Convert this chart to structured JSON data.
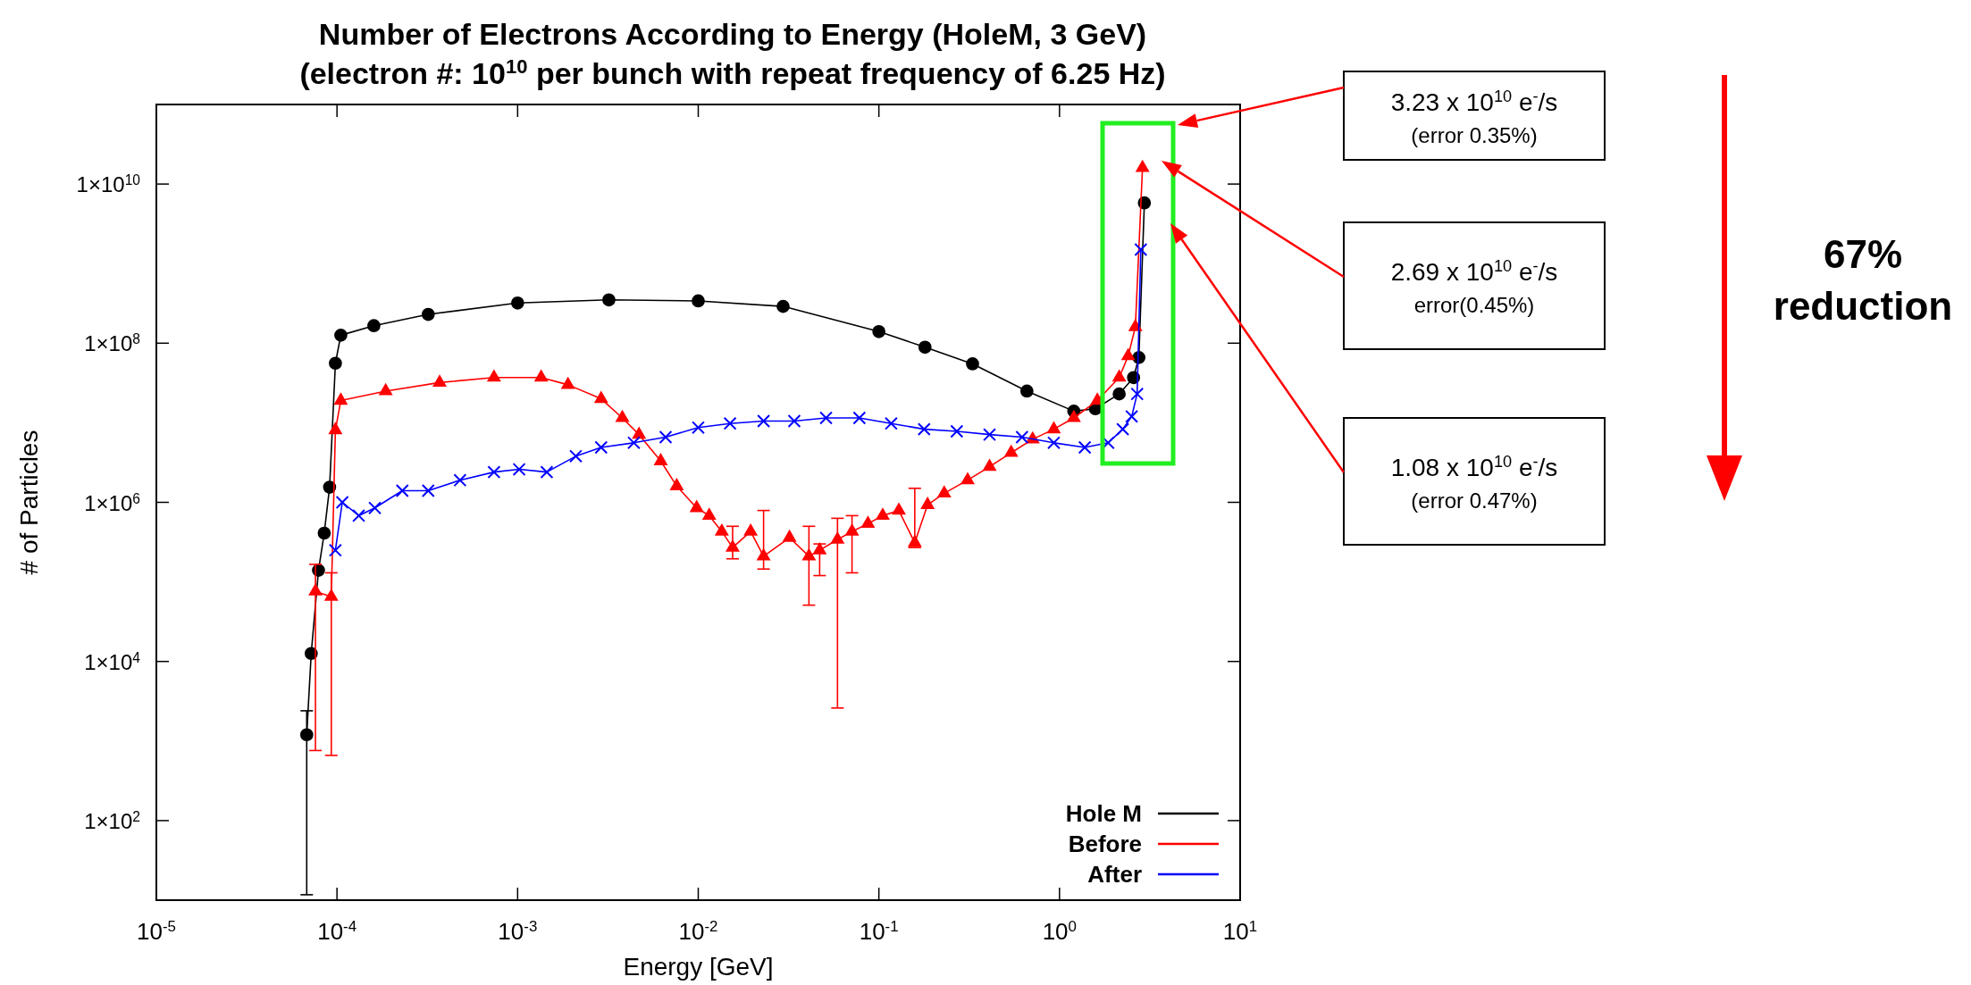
{
  "chart_data": {
    "type": "line",
    "title": "Number of Electrons According to Energy (HoleM, 3 GeV)",
    "subtitle": "(electron #: 10$^{10}$ per bunch with repeat frequency of 6.25 Hz)",
    "xlabel": "Energy [GeV]",
    "ylabel": "# of Particles",
    "log": "xy",
    "grid": false,
    "legend": "bottom right",
    "xlim": [
      1e-05,
      10
    ],
    "xticks": [
      {
        "value": 1e-05,
        "label": "10$^{-5}$"
      },
      {
        "value": 0.0001,
        "label": "10$^{-4}$"
      },
      {
        "value": 0.001,
        "label": "10$^{-3}$"
      },
      {
        "value": 0.01,
        "label": "10$^{-2}$"
      },
      {
        "value": 0.1,
        "label": "10$^{-1}$"
      },
      {
        "value": 1,
        "label": "10$^{0}$"
      },
      {
        "value": 10,
        "label": "10$^{1}$"
      }
    ],
    "ylim": [
      10,
      100000000000.0
    ],
    "yticks": [
      {
        "value": 100,
        "label": "1×10$^{2}$"
      },
      {
        "value": 10000.0,
        "label": "1×10$^{4}$"
      },
      {
        "value": 1000000.0,
        "label": "1×10$^{6}$"
      },
      {
        "value": 100000000.0,
        "label": "1×10$^{8}$"
      },
      {
        "value": 10000000000.0,
        "label": "1×10$^{10}$"
      }
    ],
    "series": [
      {
        "name": "Hole M",
        "color": "#000000",
        "marker": "circle",
        "x": [
          6.8e-05,
          7.2e-05,
          7.9e-05,
          8.5e-05,
          9.1e-05,
          9.8e-05,
          0.000105,
          0.00016,
          0.00032,
          0.001,
          0.0032,
          0.01,
          0.0295,
          0.1,
          0.18,
          0.33,
          0.66,
          1.2,
          1.58,
          2.14,
          2.57,
          2.75,
          2.95
        ],
        "values": [
          1200.0,
          12600.0,
          140000.0,
          410000.0,
          1550000.0,
          56000000.0,
          126000000.0,
          166000000.0,
          230000000.0,
          320000000.0,
          350000000.0,
          340000000.0,
          290000000.0,
          140000000.0,
          89000000.0,
          55000000.0,
          25000000.0,
          14000000.0,
          15000000.0,
          23000000.0,
          37000000.0,
          66000000.0,
          5800000000.0
        ],
        "errors": [
          [
            11.7,
            2400
          ],
          null,
          null,
          null,
          null,
          null,
          null,
          null,
          null,
          null,
          null,
          null,
          null,
          null,
          null,
          null,
          null,
          null,
          null,
          null,
          null,
          null,
          null
        ]
      },
      {
        "name": "Before",
        "color": "#ff0000",
        "marker": "triangle",
        "x": [
          7.6e-05,
          9.3e-05,
          9.8e-05,
          0.000105,
          0.000186,
          0.00037,
          0.00074,
          0.00135,
          0.0019,
          0.0029,
          0.0038,
          0.0047,
          0.0062,
          0.0076,
          0.0098,
          0.0115,
          0.0135,
          0.0155,
          0.0195,
          0.023,
          0.032,
          0.041,
          0.047,
          0.059,
          0.071,
          0.087,
          0.105,
          0.129,
          0.158,
          0.186,
          0.23,
          0.31,
          0.41,
          0.54,
          0.71,
          0.93,
          1.2,
          1.62,
          2.14,
          2.4,
          2.63,
          2.88
        ],
        "values": [
          76000.0,
          65000.0,
          8100000.0,
          19000000.0,
          25000000.0,
          32000000.0,
          37000000.0,
          37000000.0,
          30000000.0,
          20000000.0,
          11500000.0,
          7100000.0,
          3300000.0,
          1600000.0,
          850000.0,
          680000.0,
          430000.0,
          270000.0,
          430000.0,
          210000.0,
          360000.0,
          210000.0,
          250000.0,
          340000.0,
          430000.0,
          540000.0,
          680000.0,
          790000.0,
          310000.0,
          930000.0,
          1300000.0,
          1900000.0,
          2800000.0,
          4200000.0,
          6200000.0,
          8300000.0,
          11500000.0,
          19000000.0,
          37000000.0,
          69000000.0,
          160000000.0,
          16000000000.0
        ],
        "errors": [
          [
            760,
            166000.0
          ],
          [
            660,
            130000.0
          ],
          null,
          null,
          null,
          null,
          null,
          null,
          null,
          null,
          null,
          null,
          null,
          null,
          null,
          null,
          null,
          [
            195000.0,
            500000.0
          ],
          null,
          [
            145000.0,
            790000.0
          ],
          null,
          [
            51000.0,
            500000.0
          ],
          [
            120000.0,
            300000.0
          ],
          [
            2600.0,
            630000.0
          ],
          [
            130000.0,
            680000.0
          ],
          null,
          null,
          null,
          [
            270000.0,
            1500000.0
          ],
          null,
          null,
          null,
          null,
          null,
          null,
          null,
          null,
          null,
          null,
          null,
          null,
          null
        ]
      },
      {
        "name": "After",
        "color": "#0000ff",
        "marker": "cross",
        "x": [
          9.8e-05,
          0.000107,
          0.000132,
          0.000162,
          0.00023,
          0.00032,
          0.00048,
          0.00074,
          0.00102,
          0.00145,
          0.0021,
          0.0029,
          0.0044,
          0.0066,
          0.01,
          0.015,
          0.023,
          0.034,
          0.051,
          0.078,
          0.117,
          0.178,
          0.27,
          0.41,
          0.62,
          0.93,
          1.38,
          1.86,
          2.24,
          2.51,
          2.69,
          2.82
        ],
        "values": [
          250000.0,
          1000000.0,
          680000.0,
          850000.0,
          1400000.0,
          1400000.0,
          1900000.0,
          2400000.0,
          2600000.0,
          2400000.0,
          3800000.0,
          4900000.0,
          5600000.0,
          6600000.0,
          8700000.0,
          9800000.0,
          10500000.0,
          10500000.0,
          11500000.0,
          11500000.0,
          9800000.0,
          8300000.0,
          7800000.0,
          7100000.0,
          6600000.0,
          5600000.0,
          4900000.0,
          5600000.0,
          8300000.0,
          12000000.0,
          23000000.0,
          1500000000.0
        ]
      }
    ],
    "annotations": [
      "3.23 x 10$^{10}$ e$^{-}$/s\n(error 0.35%)",
      "2.69 x 10$^{10}$ e$^{-}$/s\nerror(0.45%)",
      "1.08 x 10$^{10}$ e$^{-}$/s\n(error 0.47%)",
      "67%\nreduction"
    ]
  }
}
